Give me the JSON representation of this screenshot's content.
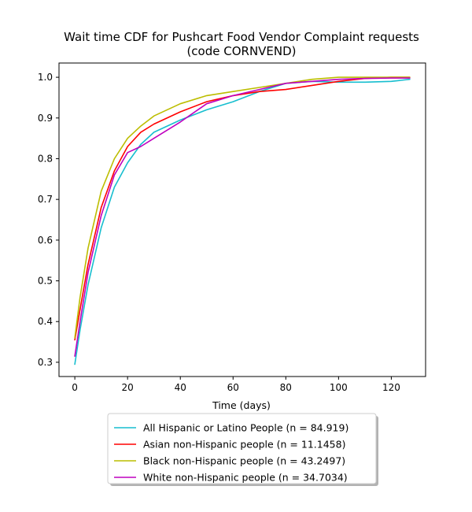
{
  "chart_data": {
    "type": "line",
    "title": "Wait time CDF for Pushcart Food Vendor Complaint  requests",
    "subtitle": "(code CORNVEND)",
    "xlabel": "Time (days)",
    "ylabel": "",
    "xlim": [
      -6,
      133
    ],
    "ylim": [
      0.265,
      1.035
    ],
    "xticks": [
      0,
      20,
      40,
      60,
      80,
      100,
      120
    ],
    "yticks": [
      0.3,
      0.4,
      0.5,
      0.6,
      0.7,
      0.8,
      0.9,
      1.0
    ],
    "legend_position": "below",
    "grid": false,
    "series": [
      {
        "name": "All Hispanic or Latino People (n = 84.919)",
        "color": "#17becf",
        "x": [
          0,
          2,
          5,
          10,
          15,
          20,
          25,
          30,
          40,
          50,
          60,
          70,
          80,
          90,
          100,
          110,
          120,
          127
        ],
        "y": [
          0.295,
          0.38,
          0.49,
          0.63,
          0.73,
          0.79,
          0.835,
          0.865,
          0.895,
          0.92,
          0.94,
          0.965,
          0.985,
          0.99,
          0.988,
          0.988,
          0.99,
          0.995
        ]
      },
      {
        "name": "Asian non-Hispanic people (n = 11.1458)",
        "color": "#ff0000",
        "x": [
          0,
          2,
          5,
          10,
          15,
          20,
          25,
          30,
          40,
          50,
          60,
          70,
          80,
          90,
          100,
          110,
          120,
          127
        ],
        "y": [
          0.355,
          0.43,
          0.54,
          0.68,
          0.77,
          0.83,
          0.865,
          0.885,
          0.915,
          0.94,
          0.955,
          0.965,
          0.97,
          0.98,
          0.99,
          0.997,
          1.0,
          1.0
        ]
      },
      {
        "name": "Black non-Hispanic people (n = 43.2497)",
        "color": "#bcbd00",
        "x": [
          0,
          2,
          5,
          10,
          15,
          20,
          25,
          30,
          40,
          50,
          60,
          70,
          80,
          90,
          100,
          110,
          120,
          127
        ],
        "y": [
          0.36,
          0.46,
          0.58,
          0.72,
          0.8,
          0.85,
          0.88,
          0.905,
          0.935,
          0.955,
          0.965,
          0.975,
          0.985,
          0.995,
          1.0,
          1.0,
          1.0,
          1.0
        ]
      },
      {
        "name": "White non-Hispanic people (n = 34.7034)",
        "color": "#bf00bf",
        "x": [
          0,
          2,
          5,
          10,
          15,
          20,
          25,
          30,
          40,
          50,
          60,
          70,
          80,
          90,
          100,
          110,
          120,
          127
        ],
        "y": [
          0.315,
          0.4,
          0.52,
          0.66,
          0.76,
          0.815,
          0.83,
          0.85,
          0.89,
          0.935,
          0.955,
          0.97,
          0.985,
          0.99,
          0.995,
          0.997,
          0.998,
          0.998
        ]
      }
    ]
  }
}
